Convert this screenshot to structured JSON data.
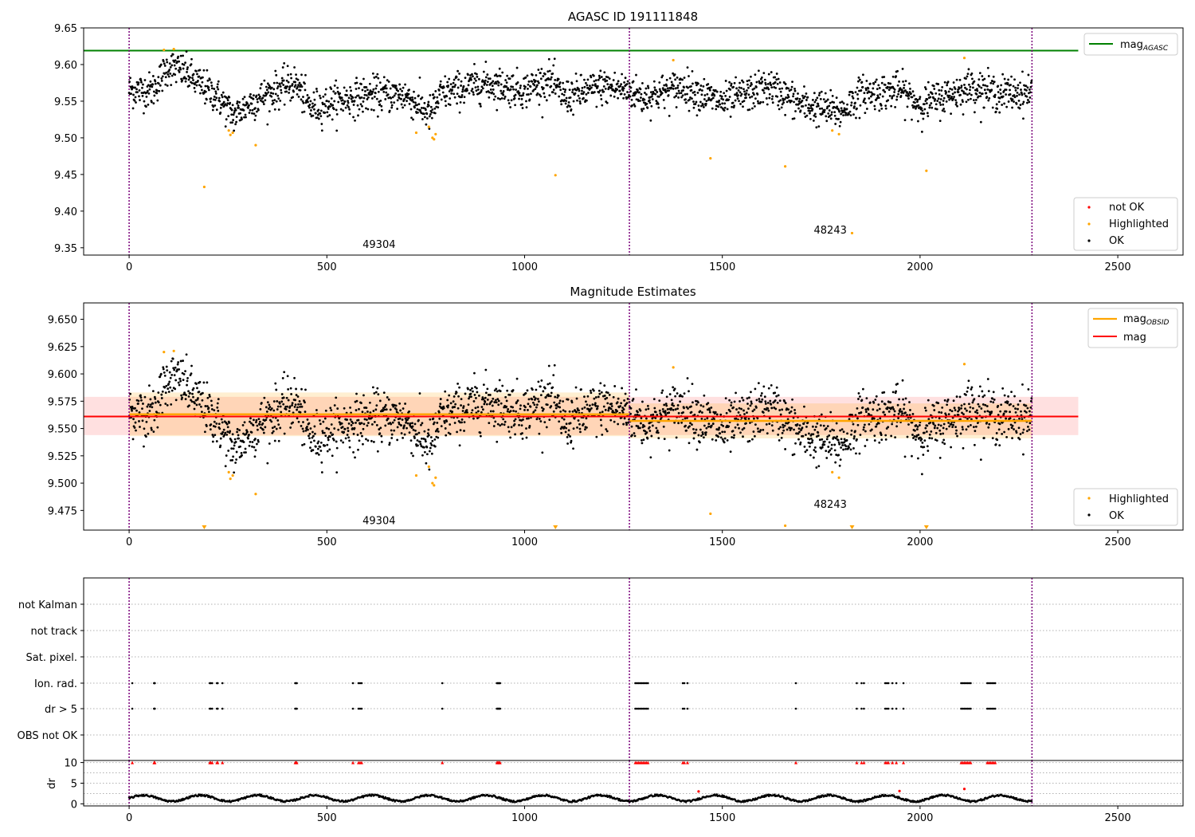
{
  "chart_data": [
    {
      "type": "scatter",
      "title": "AGASC ID 191111848",
      "xlabel": "",
      "ylabel": "",
      "xlim": [
        -115,
        2665
      ],
      "ylim": [
        9.34,
        9.65
      ],
      "x_ticks": [
        0,
        500,
        1000,
        1500,
        2000,
        2500
      ],
      "y_ticks": [
        9.35,
        9.4,
        9.45,
        9.5,
        9.55,
        9.6,
        9.65
      ],
      "y_tick_labels": [
        "9.35",
        "9.40",
        "9.45",
        "9.50",
        "9.55",
        "9.60",
        "9.65"
      ],
      "obsid_boundaries": [
        0,
        1265,
        2283
      ],
      "obsid_labels": [
        {
          "text": "49304",
          "x": 632,
          "y": 9.355
        },
        {
          "text": "48243",
          "x": 1773,
          "y": 9.375
        }
      ],
      "agasc_mag": {
        "name": "mag",
        "subscript": "AGASC",
        "value": 9.619,
        "xmin": -115,
        "xmax": 2400,
        "color": "#008000"
      },
      "highlighted": {
        "x": [
          88,
          113,
          190,
          252,
          256,
          262,
          320,
          726,
          758,
          767,
          771,
          775,
          1078,
          1376,
          1470,
          1659,
          1778,
          1795,
          1828,
          2016,
          2112
        ],
        "y": [
          9.62,
          9.621,
          9.433,
          9.51,
          9.504,
          9.507,
          9.49,
          9.507,
          9.515,
          9.5,
          9.498,
          9.505,
          9.449,
          9.606,
          9.472,
          9.461,
          9.51,
          9.505,
          9.37,
          9.455,
          9.609
        ]
      },
      "ok_series": {
        "n_points": 2283,
        "trend": [
          [
            0,
            9.565
          ],
          [
            60,
            9.565
          ],
          [
            100,
            9.598
          ],
          [
            140,
            9.59
          ],
          [
            180,
            9.572
          ],
          [
            220,
            9.558
          ],
          [
            265,
            9.53
          ],
          [
            300,
            9.545
          ],
          [
            350,
            9.56
          ],
          [
            420,
            9.575
          ],
          [
            460,
            9.54
          ],
          [
            520,
            9.55
          ],
          [
            620,
            9.56
          ],
          [
            700,
            9.558
          ],
          [
            760,
            9.532
          ],
          [
            790,
            9.56
          ],
          [
            900,
            9.575
          ],
          [
            1000,
            9.565
          ],
          [
            1060,
            9.58
          ],
          [
            1100,
            9.555
          ],
          [
            1200,
            9.57
          ],
          [
            1265,
            9.565
          ],
          [
            1300,
            9.555
          ],
          [
            1400,
            9.57
          ],
          [
            1500,
            9.548
          ],
          [
            1620,
            9.57
          ],
          [
            1700,
            9.545
          ],
          [
            1800,
            9.535
          ],
          [
            1850,
            9.56
          ],
          [
            1950,
            9.565
          ],
          [
            2000,
            9.545
          ],
          [
            2080,
            9.56
          ],
          [
            2130,
            9.57
          ],
          [
            2200,
            9.56
          ],
          [
            2283,
            9.562
          ]
        ],
        "scatter_sd": 0.012
      },
      "legend": {
        "top_right": [
          {
            "label": "mag",
            "subscript": "AGASC",
            "color": "#008000",
            "marker": "line"
          }
        ],
        "bottom_right": [
          {
            "label": "not OK",
            "color": "#ff0000",
            "marker": "dot"
          },
          {
            "label": "Highlighted",
            "color": "#ffa500",
            "marker": "dot"
          },
          {
            "label": "OK",
            "color": "#000000",
            "marker": "dot"
          }
        ]
      }
    },
    {
      "type": "scatter",
      "title": "Magnitude Estimates",
      "xlabel": "",
      "ylabel": "",
      "xlim": [
        -115,
        2665
      ],
      "ylim": [
        9.457,
        9.665
      ],
      "x_ticks": [
        0,
        500,
        1000,
        1500,
        2000,
        2500
      ],
      "y_ticks": [
        9.475,
        9.5,
        9.525,
        9.55,
        9.575,
        9.6,
        9.625,
        9.65
      ],
      "y_tick_labels": [
        "9.475",
        "9.500",
        "9.525",
        "9.550",
        "9.575",
        "9.600",
        "9.625",
        "9.650"
      ],
      "obsid_boundaries": [
        0,
        1265,
        2283
      ],
      "obsid_labels": [
        {
          "text": "49304",
          "x": 632,
          "y": 9.466
        },
        {
          "text": "48243",
          "x": 1773,
          "y": 9.481
        }
      ],
      "mag": {
        "name": "mag",
        "value": 9.561,
        "band": [
          9.544,
          9.579
        ],
        "xmin": -115,
        "xmax": 2400,
        "color": "#ff0000"
      },
      "mag_obsid": [
        {
          "name": "mag",
          "subscript": "OBSID",
          "value": 9.563,
          "band": [
            9.543,
            9.583
          ],
          "xmin": 0,
          "xmax": 1265,
          "color": "#ffa500"
        },
        {
          "name": "mag",
          "subscript": "OBSID",
          "value": 9.557,
          "band": [
            9.541,
            9.573
          ],
          "xmin": 1265,
          "xmax": 2283,
          "color": "#ffa500"
        }
      ],
      "highlighted": {
        "x": [
          88,
          113,
          252,
          256,
          262,
          320,
          726,
          758,
          767,
          771,
          775,
          1376,
          1470,
          1659,
          1778,
          1795,
          2112
        ],
        "y": [
          9.62,
          9.621,
          9.51,
          9.504,
          9.507,
          9.49,
          9.507,
          9.515,
          9.5,
          9.498,
          9.505,
          9.606,
          9.472,
          9.461,
          9.51,
          9.505,
          9.609
        ]
      },
      "off_scale_markers": {
        "x": [
          190,
          1078,
          1828,
          2016
        ],
        "color": "#ffa500"
      },
      "legend": {
        "top_right": [
          {
            "label": "mag",
            "subscript": "OBSID",
            "color": "#ffa500",
            "marker": "line"
          },
          {
            "label": "mag",
            "color": "#ff0000",
            "marker": "line"
          }
        ],
        "bottom_right": [
          {
            "label": "Highlighted",
            "color": "#ffa500",
            "marker": "dot"
          },
          {
            "label": "OK",
            "color": "#000000",
            "marker": "dot"
          }
        ]
      }
    },
    {
      "type": "scatter",
      "title": "",
      "xlabel": "",
      "ylabel": "",
      "xlim": [
        -115,
        2665
      ],
      "x_ticks": [
        0,
        500,
        1000,
        1500,
        2000,
        2500
      ],
      "obsid_boundaries": [
        0,
        1265,
        2283
      ],
      "flag_rows": [
        "not Kalman",
        "not track",
        "Sat. pixel.",
        "Ion. rad.",
        "dr > 5",
        "OBS not OK"
      ],
      "flag_events": {
        "Ion. rad.": [
          8,
          63,
          64,
          65,
          204,
          206,
          210,
          222,
          224,
          236,
          420,
          422,
          424,
          566,
          580,
          584,
          588,
          792,
          930,
          932,
          934,
          936,
          938,
          1280,
          1284,
          1288,
          1292,
          1296,
          1300,
          1304,
          1308,
          1312,
          1400,
          1404,
          1412,
          1686,
          1840,
          1852,
          1858,
          1912,
          1916,
          1920,
          1930,
          1940,
          1958,
          2104,
          2108,
          2112,
          2116,
          2120,
          2124,
          2128,
          2170,
          2174,
          2178,
          2182,
          2186,
          2190
        ],
        "dr > 5": [
          8,
          63,
          64,
          65,
          204,
          206,
          210,
          222,
          224,
          236,
          420,
          422,
          424,
          566,
          580,
          584,
          588,
          792,
          930,
          932,
          934,
          936,
          938,
          1280,
          1284,
          1288,
          1292,
          1296,
          1300,
          1304,
          1308,
          1312,
          1400,
          1404,
          1412,
          1686,
          1840,
          1852,
          1858,
          1912,
          1916,
          1920,
          1930,
          1940,
          1958,
          2104,
          2108,
          2112,
          2116,
          2120,
          2124,
          2128,
          2170,
          2174,
          2178,
          2182,
          2186,
          2190
        ]
      }
    },
    {
      "type": "scatter",
      "title": "",
      "xlabel": "",
      "ylabel": "dr",
      "xlim": [
        -115,
        2665
      ],
      "ylim": [
        -0.5,
        10.5
      ],
      "x_ticks": [
        0,
        500,
        1000,
        1500,
        2000,
        2500
      ],
      "x_tick_labels": [
        "0",
        "500",
        "1000",
        "1500",
        "2000",
        "2500"
      ],
      "y_ticks": [
        0,
        5,
        10
      ],
      "y_tick_labels": [
        "0",
        "5",
        "10"
      ],
      "obsid_boundaries": [
        0,
        1265,
        2283
      ],
      "dr_typical_range": [
        0.2,
        2.3
      ],
      "not_ok_clipped_value": 10,
      "not_ok_x": [
        8,
        63,
        64,
        65,
        204,
        206,
        210,
        222,
        224,
        236,
        420,
        422,
        424,
        566,
        580,
        584,
        588,
        792,
        930,
        932,
        934,
        936,
        938,
        1280,
        1284,
        1288,
        1292,
        1296,
        1300,
        1304,
        1308,
        1312,
        1400,
        1404,
        1412,
        1686,
        1840,
        1852,
        1858,
        1912,
        1916,
        1920,
        1930,
        1940,
        1958,
        2104,
        2108,
        2112,
        2116,
        2120,
        2124,
        2128,
        2170,
        2174,
        2178,
        2182,
        2186,
        2190
      ],
      "red_low": {
        "x": [
          1440,
          1948,
          2112
        ],
        "y": [
          3.0,
          3.1,
          3.6
        ]
      }
    }
  ]
}
